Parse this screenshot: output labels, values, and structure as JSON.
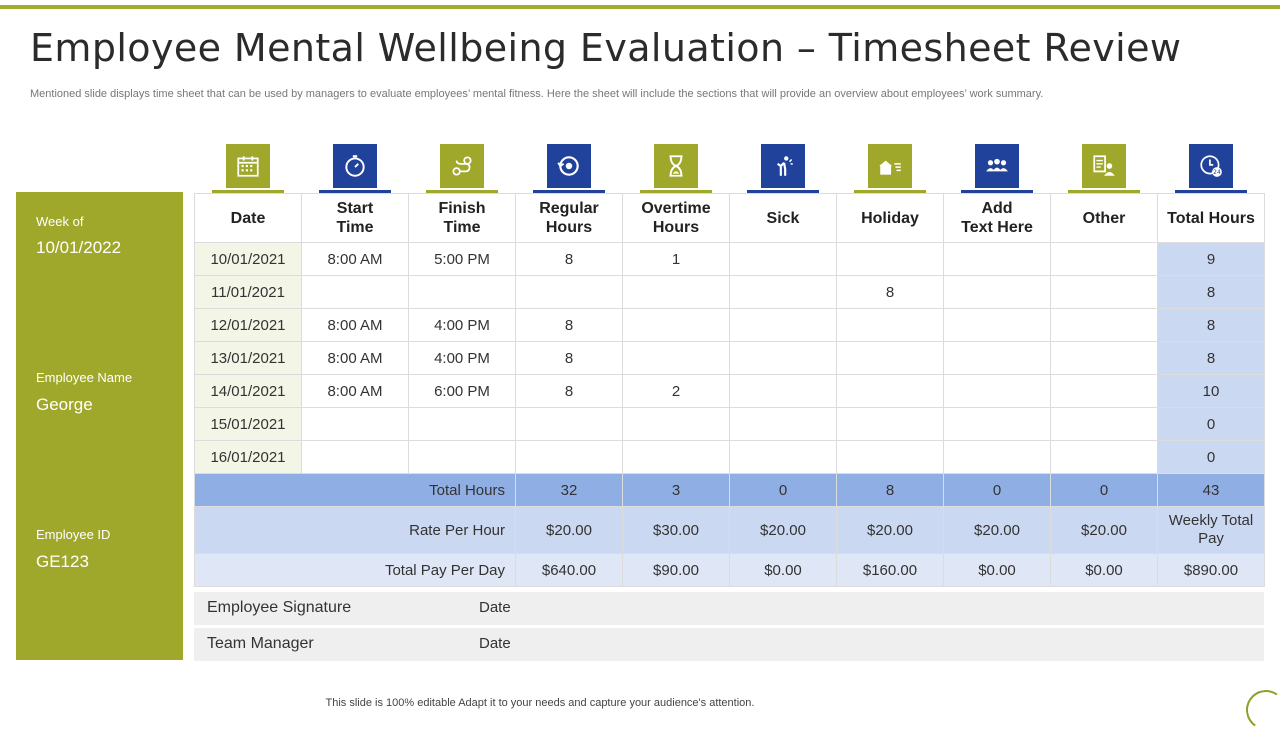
{
  "title": "Employee Mental Wellbeing Evaluation – Timesheet Review",
  "subtitle": "Mentioned slide displays time sheet that can be used by managers to evaluate employees’ mental fitness. Here the sheet will include the sections that will provide an overview about employees’ work summary.",
  "sidebar": {
    "week_label": "Week of",
    "week_value": "10/01/2022",
    "name_label": "Employee Name",
    "name_value": "George",
    "id_label": "Employee ID",
    "id_value": "GE123"
  },
  "colors": {
    "olive": "#a0a82c",
    "navy": "#21429a",
    "sum_row": "#8faee4",
    "total_col": "#cbd8f1"
  },
  "columns": [
    {
      "line1": "Date",
      "line2": "",
      "icon": "calendar-icon"
    },
    {
      "line1": "Start",
      "line2": "Time",
      "icon": "stopwatch-icon"
    },
    {
      "line1": "Finish",
      "line2": "Time",
      "icon": "route-icon"
    },
    {
      "line1": "Regular",
      "line2": "Hours",
      "icon": "clock-arrow-icon"
    },
    {
      "line1": "Overtime",
      "line2": "Hours",
      "icon": "hourglass-icon"
    },
    {
      "line1": "Sick",
      "line2": "",
      "icon": "sick-person-icon"
    },
    {
      "line1": "Holiday",
      "line2": "",
      "icon": "holiday-icon"
    },
    {
      "line1": "Add",
      "line2": "Text Here",
      "icon": "team-icon"
    },
    {
      "line1": "Other",
      "line2": "",
      "icon": "document-person-icon"
    },
    {
      "line1": "Total Hours",
      "line2": "",
      "icon": "clock-24-icon"
    }
  ],
  "rows": [
    [
      "10/01/2021",
      "8:00 AM",
      "5:00 PM",
      "8",
      "1",
      "",
      "",
      "",
      "",
      "9"
    ],
    [
      "11/01/2021",
      "",
      "",
      "",
      "",
      "",
      "8",
      "",
      "",
      "8"
    ],
    [
      "12/01/2021",
      "8:00 AM",
      "4:00 PM",
      "8",
      "",
      "",
      "",
      "",
      "",
      "8"
    ],
    [
      "13/01/2021",
      "8:00 AM",
      "4:00 PM",
      "8",
      "",
      "",
      "",
      "",
      "",
      "8"
    ],
    [
      "14/01/2021",
      "8:00 AM",
      "6:00 PM",
      "8",
      "2",
      "",
      "",
      "",
      "",
      "10"
    ],
    [
      "15/01/2021",
      "",
      "",
      "",
      "",
      "",
      "",
      "",
      "",
      "0"
    ],
    [
      "16/01/2021",
      "",
      "",
      "",
      "",
      "",
      "",
      "",
      "",
      "0"
    ]
  ],
  "totals": {
    "label": "Total Hours",
    "values": [
      "32",
      "3",
      "0",
      "8",
      "0",
      "0",
      "43"
    ]
  },
  "rate": {
    "label": "Rate Per Hour",
    "values": [
      "$20.00",
      "$30.00",
      "$20.00",
      "$20.00",
      "$20.00",
      "$20.00"
    ],
    "last": "Weekly Total Pay"
  },
  "pay": {
    "label": "Total Pay Per Day",
    "values": [
      "$640.00",
      "$90.00",
      "$0.00",
      "$160.00",
      "$0.00",
      "$0.00",
      "$890.00"
    ]
  },
  "signature": {
    "employee_label": "Employee Signature",
    "manager_label": "Team Manager",
    "date_label": "Date"
  },
  "footer": "This slide is 100% editable Adapt it to your needs and capture your audience's attention."
}
